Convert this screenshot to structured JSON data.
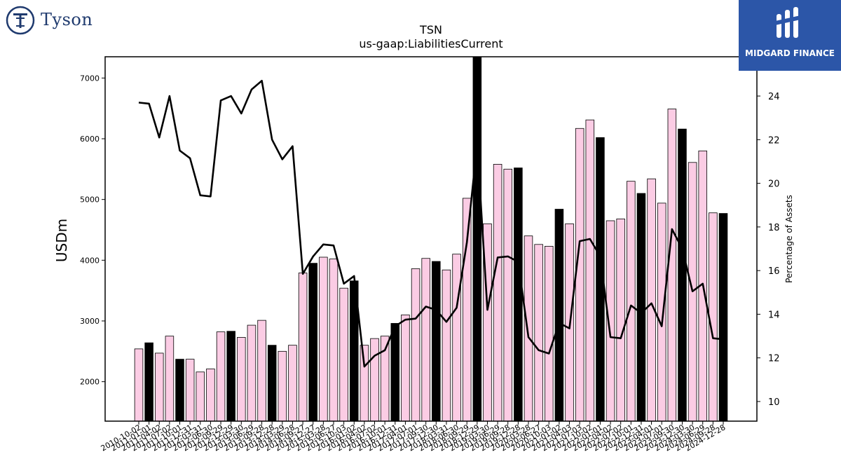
{
  "logos": {
    "left_brand": "Tyson",
    "right_brand": "MIDGARD FINANCE"
  },
  "colors": {
    "bar_regular": "#fbcce4",
    "bar_highlight": "#000000",
    "line": "#000000"
  },
  "chart_data": {
    "type": "bar",
    "title": "TSN",
    "subtitle": "us-gaap:LiabilitiesCurrent",
    "ylabel": "USDm",
    "y2label": "Percentage of Assets",
    "ylim": [
      1350,
      7350
    ],
    "y2lim": [
      9.1,
      25.8
    ],
    "yticks": [
      2000,
      3000,
      4000,
      5000,
      6000,
      7000
    ],
    "y2ticks": [
      10,
      12,
      14,
      16,
      18,
      20,
      22,
      24
    ],
    "categories": [
      "2010-10-02",
      "2011-01-01",
      "2011-04-02",
      "2011-07-02",
      "2011-10-01",
      "2011-12-31",
      "2012-03-31",
      "2012-06-30",
      "2012-09-29",
      "2012-12-29",
      "2013-03-30",
      "2013-06-29",
      "2013-09-28",
      "2013-12-28",
      "2014-03-29",
      "2014-06-28",
      "2014-09-27",
      "2014-12-27",
      "2015-03-28",
      "2015-06-27",
      "2015-10-03",
      "2016-01-02",
      "2016-04-02",
      "2016-07-02",
      "2016-10-01",
      "2016-12-31",
      "2017-04-01",
      "2017-07-01",
      "2017-09-30",
      "2017-12-30",
      "2018-03-31",
      "2018-06-30",
      "2018-09-29",
      "2018-12-29",
      "2019-03-30",
      "2019-06-29",
      "2019-09-28",
      "2019-12-28",
      "2020-03-28",
      "2020-06-27",
      "2020-10-03",
      "2021-01-02",
      "2021-04-03",
      "2021-07-03",
      "2021-10-02",
      "2022-01-01",
      "2022-04-02",
      "2022-07-02",
      "2022-10-01",
      "2022-12-31",
      "2023-04-01",
      "2023-07-01",
      "2023-09-30",
      "2023-12-30",
      "2024-03-30",
      "2024-06-29",
      "2024-09-28",
      "2024-12-28"
    ],
    "series": [
      {
        "kind": "bar",
        "values": [
          2540,
          2640,
          2470,
          2750,
          2370,
          2370,
          2160,
          2210,
          2820,
          2830,
          2730,
          2930,
          3010,
          2600,
          2500,
          2600,
          3790,
          3950,
          4050,
          4020,
          3540,
          3660,
          2600,
          2710,
          2750,
          2960,
          3100,
          3860,
          4030,
          3980,
          3840,
          4100,
          5020,
          7400,
          4600,
          5580,
          5500,
          5520,
          4400,
          4260,
          4230,
          4840,
          4600,
          6170,
          6310,
          6020,
          4650,
          4680,
          5300,
          5100,
          5340,
          4940,
          6490,
          6160,
          5610,
          5800,
          4780,
          4770
        ],
        "highlight": [
          false,
          true,
          false,
          false,
          true,
          false,
          false,
          false,
          false,
          true,
          false,
          false,
          false,
          true,
          false,
          false,
          false,
          true,
          false,
          false,
          false,
          true,
          false,
          false,
          false,
          true,
          false,
          false,
          false,
          true,
          false,
          false,
          false,
          true,
          false,
          false,
          false,
          true,
          false,
          false,
          false,
          true,
          false,
          false,
          false,
          true,
          false,
          false,
          false,
          true,
          false,
          false,
          false,
          true,
          false,
          false,
          false,
          true
        ]
      },
      {
        "kind": "line",
        "axis": "y2",
        "values": [
          23.7,
          23.65,
          22.1,
          24.0,
          21.5,
          21.15,
          19.45,
          19.4,
          23.8,
          24.0,
          23.2,
          24.3,
          24.7,
          22.0,
          21.1,
          21.7,
          15.85,
          16.65,
          17.2,
          17.15,
          15.4,
          15.75,
          11.6,
          12.1,
          12.35,
          13.45,
          13.75,
          13.8,
          14.35,
          14.2,
          13.65,
          14.3,
          17.3,
          21.8,
          14.2,
          16.6,
          16.65,
          16.4,
          12.95,
          12.35,
          12.2,
          13.6,
          13.35,
          17.35,
          17.45,
          16.65,
          12.95,
          12.9,
          14.4,
          14.05,
          14.5,
          13.45,
          17.9,
          17.0,
          15.05,
          15.4,
          12.9,
          12.85
        ]
      }
    ]
  }
}
